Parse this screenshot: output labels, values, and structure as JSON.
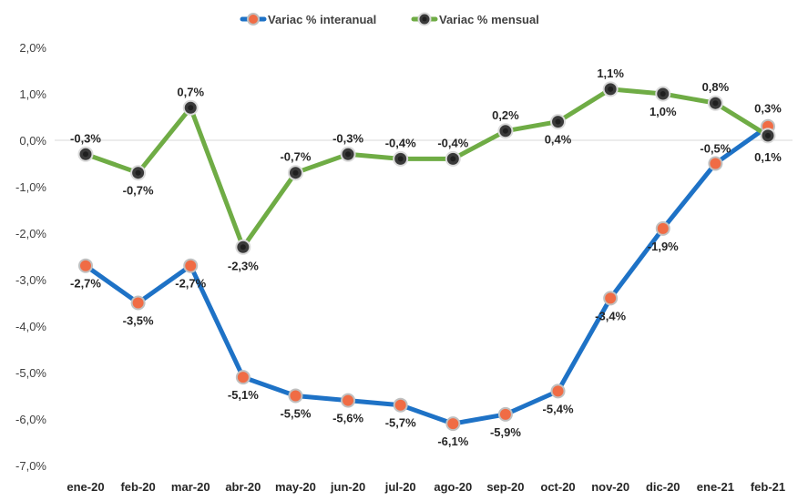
{
  "chart_data": {
    "type": "line",
    "categories": [
      "ene-20",
      "feb-20",
      "mar-20",
      "abr-20",
      "may-20",
      "jun-20",
      "jul-20",
      "ago-20",
      "sep-20",
      "oct-20",
      "nov-20",
      "dic-20",
      "ene-21",
      "feb-21"
    ],
    "series": [
      {
        "name": "Variac % interanual",
        "color": "#1e72c6",
        "marker_color": "#f06c45",
        "values": [
          -2.7,
          -3.5,
          -2.7,
          -5.1,
          -5.5,
          -5.6,
          -5.7,
          -6.1,
          -5.9,
          -5.4,
          -3.4,
          -1.9,
          -0.5,
          0.3
        ],
        "labels": [
          "-2,7%",
          "-3,5%",
          "-2,7%",
          "-5,1%",
          "-5,5%",
          "-5,6%",
          "-5,7%",
          "-6,1%",
          "-5,9%",
          "-5,4%",
          "-3,4%",
          "-1,9%",
          "-0,5%",
          "0,3%"
        ]
      },
      {
        "name": "Variac % mensual",
        "color": "#6fac45",
        "marker_color": "#3a3a3a",
        "values": [
          -0.3,
          -0.7,
          0.7,
          -2.3,
          -0.7,
          -0.3,
          -0.4,
          -0.4,
          0.2,
          0.4,
          1.1,
          1.0,
          0.8,
          0.1
        ],
        "labels": [
          "-0,3%",
          "-0,7%",
          "0,7%",
          "-2,3%",
          "-0,7%",
          "-0,3%",
          "-0,4%",
          "-0,4%",
          "0,2%",
          "0,4%",
          "1,1%",
          "1,0%",
          "0,8%",
          "0,1%"
        ]
      }
    ],
    "y_ticks": [
      "2,0%",
      "1,0%",
      "0,0%",
      "-1,0%",
      "-2,0%",
      "-3,0%",
      "-4,0%",
      "-5,0%",
      "-6,0%",
      "-7,0%"
    ],
    "ylim": [
      -7,
      2
    ],
    "grid": "zero line only",
    "legend": "top-center"
  }
}
